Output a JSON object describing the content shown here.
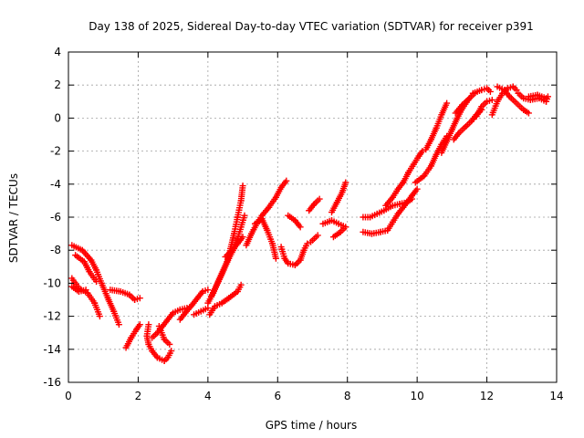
{
  "chart_data": {
    "type": "scatter",
    "title": "Day 138 of 2025, Sidereal Day-to-day VTEC variation (SDTVAR) for receiver p391",
    "xlabel": "GPS time / hours",
    "ylabel": "SDTVAR / TECUs",
    "xlim": [
      0,
      14
    ],
    "ylim": [
      -16,
      4
    ],
    "xticks": [
      "0",
      "2",
      "4",
      "6",
      "8",
      "10",
      "12",
      "14"
    ],
    "yticks": [
      "-16",
      "-14",
      "-12",
      "-10",
      "-8",
      "-6",
      "-4",
      "-2",
      "0",
      "2",
      "4"
    ],
    "grid": true,
    "marker": "plus",
    "color": "#ff0000",
    "tracks": [
      [
        [
          0.1,
          -7.7
        ],
        [
          0.4,
          -8.0
        ],
        [
          0.65,
          -8.6
        ],
        [
          0.8,
          -9.2
        ],
        [
          0.95,
          -10.0
        ],
        [
          1.15,
          -11.0
        ],
        [
          1.3,
          -11.7
        ],
        [
          1.45,
          -12.5
        ]
      ],
      [
        [
          0.1,
          -9.7
        ],
        [
          0.3,
          -10.3
        ],
        [
          0.55,
          -10.6
        ],
        [
          0.75,
          -11.2
        ],
        [
          0.9,
          -12.0
        ]
      ],
      [
        [
          0.2,
          -8.3
        ],
        [
          0.45,
          -8.7
        ],
        [
          0.6,
          -9.3
        ],
        [
          0.8,
          -9.9
        ]
      ],
      [
        [
          0.1,
          -10.2
        ],
        [
          0.3,
          -10.5
        ],
        [
          0.5,
          -10.4
        ]
      ],
      [
        [
          1.2,
          -10.4
        ],
        [
          1.5,
          -10.5
        ],
        [
          1.75,
          -10.7
        ],
        [
          1.9,
          -11.0
        ],
        [
          2.05,
          -10.9
        ]
      ],
      [
        [
          1.65,
          -13.9
        ],
        [
          1.8,
          -13.3
        ],
        [
          1.95,
          -12.8
        ],
        [
          2.05,
          -12.5
        ]
      ],
      [
        [
          2.3,
          -12.5
        ],
        [
          2.25,
          -13.2
        ],
        [
          2.3,
          -13.7
        ],
        [
          2.4,
          -14.1
        ],
        [
          2.55,
          -14.5
        ],
        [
          2.75,
          -14.7
        ],
        [
          2.85,
          -14.5
        ],
        [
          2.95,
          -14.1
        ]
      ],
      [
        [
          2.4,
          -13.3
        ],
        [
          2.55,
          -13.0
        ],
        [
          2.7,
          -12.6
        ],
        [
          2.85,
          -12.2
        ],
        [
          3.0,
          -11.8
        ],
        [
          3.2,
          -11.6
        ],
        [
          3.4,
          -11.5
        ]
      ],
      [
        [
          3.2,
          -12.2
        ],
        [
          3.35,
          -11.8
        ],
        [
          3.55,
          -11.3
        ],
        [
          3.7,
          -10.9
        ],
        [
          3.85,
          -10.5
        ],
        [
          4.0,
          -10.4
        ]
      ],
      [
        [
          2.6,
          -12.6
        ],
        [
          2.75,
          -13.4
        ],
        [
          2.9,
          -13.7
        ]
      ],
      [
        [
          3.6,
          -11.9
        ],
        [
          3.8,
          -11.7
        ],
        [
          4.0,
          -11.5
        ]
      ],
      [
        [
          4.05,
          -11.9
        ],
        [
          4.2,
          -11.4
        ],
        [
          4.4,
          -11.2
        ],
        [
          4.6,
          -10.9
        ],
        [
          4.85,
          -10.5
        ],
        [
          4.95,
          -10.1
        ]
      ],
      [
        [
          4.0,
          -11.2
        ],
        [
          4.15,
          -10.6
        ],
        [
          4.3,
          -9.9
        ],
        [
          4.45,
          -9.2
        ],
        [
          4.6,
          -8.5
        ],
        [
          4.75,
          -7.9
        ],
        [
          4.85,
          -7.3
        ],
        [
          4.95,
          -6.6
        ],
        [
          5.05,
          -5.9
        ]
      ],
      [
        [
          4.1,
          -10.8
        ],
        [
          4.25,
          -10.1
        ],
        [
          4.4,
          -9.4
        ],
        [
          4.55,
          -8.7
        ],
        [
          4.65,
          -7.9
        ],
        [
          4.75,
          -7.0
        ],
        [
          4.85,
          -6.0
        ],
        [
          4.95,
          -5.0
        ],
        [
          5.0,
          -4.1
        ]
      ],
      [
        [
          4.5,
          -8.4
        ],
        [
          4.7,
          -8.0
        ],
        [
          4.85,
          -7.6
        ],
        [
          5.0,
          -7.2
        ]
      ],
      [
        [
          5.1,
          -7.7
        ],
        [
          5.25,
          -7.0
        ],
        [
          5.4,
          -6.4
        ],
        [
          5.55,
          -5.9
        ],
        [
          5.75,
          -5.4
        ],
        [
          5.95,
          -4.8
        ],
        [
          6.1,
          -4.2
        ],
        [
          6.25,
          -3.8
        ]
      ],
      [
        [
          5.35,
          -6.4
        ],
        [
          5.55,
          -6.1
        ],
        [
          5.7,
          -6.8
        ],
        [
          5.85,
          -7.6
        ],
        [
          5.95,
          -8.5
        ]
      ],
      [
        [
          6.1,
          -7.8
        ],
        [
          6.2,
          -8.5
        ],
        [
          6.3,
          -8.8
        ],
        [
          6.5,
          -8.9
        ],
        [
          6.65,
          -8.6
        ],
        [
          6.75,
          -8.0
        ],
        [
          6.85,
          -7.6
        ]
      ],
      [
        [
          6.3,
          -5.9
        ],
        [
          6.5,
          -6.2
        ],
        [
          6.65,
          -6.6
        ]
      ],
      [
        [
          6.9,
          -5.6
        ],
        [
          7.05,
          -5.2
        ],
        [
          7.2,
          -4.9
        ]
      ],
      [
        [
          6.95,
          -7.5
        ],
        [
          7.15,
          -7.1
        ]
      ],
      [
        [
          7.3,
          -6.4
        ],
        [
          7.55,
          -6.2
        ],
        [
          7.75,
          -6.4
        ],
        [
          7.95,
          -6.6
        ]
      ],
      [
        [
          7.55,
          -5.7
        ],
        [
          7.7,
          -5.1
        ],
        [
          7.85,
          -4.5
        ],
        [
          7.95,
          -3.9
        ]
      ],
      [
        [
          7.6,
          -7.2
        ],
        [
          7.8,
          -6.9
        ],
        [
          7.95,
          -6.6
        ]
      ],
      [
        [
          8.45,
          -6.0
        ],
        [
          8.65,
          -6.0
        ],
        [
          8.85,
          -5.8
        ],
        [
          9.05,
          -5.6
        ],
        [
          9.3,
          -5.3
        ],
        [
          9.5,
          -5.2
        ],
        [
          9.7,
          -5.1
        ],
        [
          9.85,
          -4.9
        ]
      ],
      [
        [
          8.45,
          -6.9
        ],
        [
          8.7,
          -7.0
        ],
        [
          8.95,
          -6.9
        ],
        [
          9.15,
          -6.8
        ],
        [
          9.3,
          -6.3
        ],
        [
          9.45,
          -5.8
        ],
        [
          9.6,
          -5.4
        ],
        [
          9.75,
          -5.0
        ],
        [
          9.85,
          -4.7
        ],
        [
          10.0,
          -4.3
        ]
      ],
      [
        [
          9.1,
          -5.3
        ],
        [
          9.3,
          -4.8
        ],
        [
          9.45,
          -4.3
        ],
        [
          9.6,
          -3.9
        ],
        [
          9.75,
          -3.3
        ],
        [
          9.9,
          -2.8
        ],
        [
          10.05,
          -2.3
        ],
        [
          10.15,
          -2.0
        ]
      ],
      [
        [
          9.95,
          -3.9
        ],
        [
          10.2,
          -3.5
        ],
        [
          10.4,
          -2.9
        ],
        [
          10.55,
          -2.2
        ],
        [
          10.7,
          -1.6
        ],
        [
          10.85,
          -1.1
        ]
      ],
      [
        [
          10.25,
          -1.9
        ],
        [
          10.4,
          -1.3
        ],
        [
          10.55,
          -0.6
        ],
        [
          10.7,
          0.2
        ],
        [
          10.85,
          0.9
        ]
      ],
      [
        [
          10.7,
          -2.1
        ],
        [
          10.85,
          -1.4
        ],
        [
          11.0,
          -0.7
        ],
        [
          11.15,
          0.0
        ],
        [
          11.3,
          0.6
        ],
        [
          11.5,
          1.2
        ],
        [
          11.65,
          1.5
        ]
      ],
      [
        [
          11.05,
          -1.3
        ],
        [
          11.2,
          -0.9
        ],
        [
          11.4,
          -0.5
        ],
        [
          11.55,
          -0.2
        ],
        [
          11.7,
          0.2
        ],
        [
          11.85,
          0.5
        ]
      ],
      [
        [
          11.6,
          1.5
        ],
        [
          11.85,
          1.7
        ],
        [
          12.0,
          1.8
        ],
        [
          12.1,
          1.6
        ]
      ],
      [
        [
          11.7,
          0.1
        ],
        [
          11.85,
          0.7
        ],
        [
          12.0,
          1.0
        ],
        [
          12.15,
          1.1
        ]
      ],
      [
        [
          11.1,
          0.3
        ],
        [
          11.3,
          0.8
        ],
        [
          11.5,
          1.2
        ]
      ],
      [
        [
          12.15,
          0.2
        ],
        [
          12.3,
          1.0
        ],
        [
          12.45,
          1.5
        ],
        [
          12.6,
          1.8
        ],
        [
          12.75,
          1.9
        ],
        [
          12.85,
          1.7
        ]
      ],
      [
        [
          12.3,
          1.9
        ],
        [
          12.5,
          1.7
        ],
        [
          12.65,
          1.3
        ],
        [
          12.8,
          1.0
        ]
      ],
      [
        [
          12.9,
          1.5
        ],
        [
          13.05,
          1.2
        ],
        [
          13.25,
          1.1
        ],
        [
          13.5,
          1.2
        ],
        [
          13.7,
          1.0
        ],
        [
          13.75,
          1.3
        ]
      ],
      [
        [
          12.85,
          0.9
        ],
        [
          13.05,
          0.5
        ],
        [
          13.2,
          0.3
        ]
      ],
      [
        [
          13.2,
          1.3
        ],
        [
          13.45,
          1.4
        ],
        [
          13.7,
          1.2
        ]
      ]
    ]
  }
}
